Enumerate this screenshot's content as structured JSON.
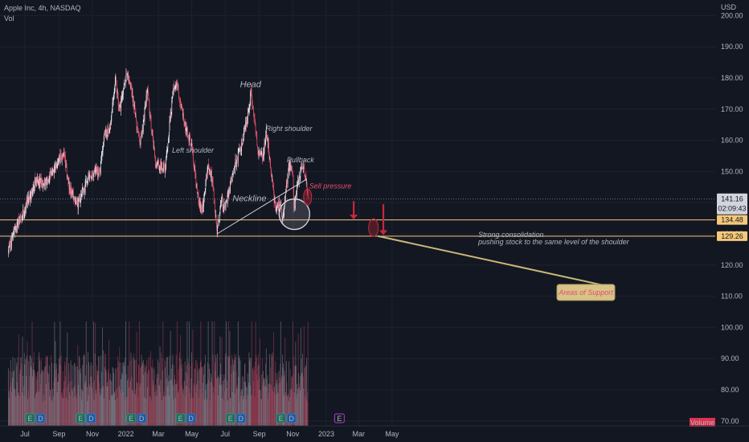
{
  "header": {
    "title": "Apple Inc, 4h, NASDAQ",
    "volume_label": "Vol"
  },
  "colors": {
    "background": "#131722",
    "up": "#e9e9ef",
    "down": "#e04f6a",
    "grid": "#1e2230",
    "support": "#f5c87a",
    "neckline": "#cfd2da",
    "annotation_red": "#e84c6e"
  },
  "chart_data": {
    "type": "candlestick",
    "title": "Apple Inc, 4h, NASDAQ",
    "currency": "USD",
    "x_tick_labels": [
      "Jul",
      "Sep",
      "Nov",
      "2022",
      "Mar",
      "May",
      "Jul",
      "Sep",
      "Nov",
      "2023",
      "Mar",
      "May"
    ],
    "y_tick_labels": [
      200,
      190,
      180,
      170,
      160,
      150,
      140,
      130,
      120,
      110,
      100,
      90,
      80,
      70
    ],
    "y_tick_text": [
      "200.00",
      "190.00",
      "180.00",
      "170.00",
      "160.00",
      "150.00",
      "140.00",
      "130.00",
      "120.00",
      "110.00",
      "100.00",
      "90.00",
      "80.00",
      "70.00"
    ],
    "ylim": [
      67,
      205
    ],
    "price_anchors": [
      [
        "2021-06-01",
        124.5
      ],
      [
        "2021-06-10",
        130
      ],
      [
        "2021-07-01",
        138
      ],
      [
        "2021-07-20",
        147
      ],
      [
        "2021-08-05",
        146
      ],
      [
        "2021-08-30",
        153
      ],
      [
        "2021-09-10",
        156
      ],
      [
        "2021-09-20",
        145
      ],
      [
        "2021-10-05",
        139
      ],
      [
        "2021-10-25",
        149
      ],
      [
        "2021-11-15",
        150
      ],
      [
        "2021-11-22",
        161
      ],
      [
        "2021-12-03",
        164
      ],
      [
        "2021-12-13",
        180
      ],
      [
        "2021-12-20",
        169
      ],
      [
        "2022-01-03",
        182
      ],
      [
        "2022-01-14",
        173
      ],
      [
        "2022-01-27",
        158
      ],
      [
        "2022-02-09",
        176
      ],
      [
        "2022-02-24",
        152
      ],
      [
        "2022-03-14",
        151
      ],
      [
        "2022-03-29",
        178
      ],
      [
        "2022-04-04",
        178
      ],
      [
        "2022-04-18",
        165
      ],
      [
        "2022-05-01",
        158
      ],
      [
        "2022-05-12",
        142
      ],
      [
        "2022-05-20",
        137
      ],
      [
        "2022-05-30",
        151
      ],
      [
        "2022-06-07",
        148
      ],
      [
        "2022-06-16",
        130
      ],
      [
        "2022-06-24",
        141
      ],
      [
        "2022-07-01",
        138
      ],
      [
        "2022-07-15",
        150
      ],
      [
        "2022-07-28",
        157
      ],
      [
        "2022-08-10",
        167
      ],
      [
        "2022-08-17",
        175
      ],
      [
        "2022-08-30",
        157
      ],
      [
        "2022-09-07",
        154
      ],
      [
        "2022-09-13",
        163
      ],
      [
        "2022-09-20",
        155
      ],
      [
        "2022-09-30",
        138
      ],
      [
        "2022-10-10",
        140
      ],
      [
        "2022-10-13",
        134
      ],
      [
        "2022-10-25",
        152
      ],
      [
        "2022-11-01",
        150
      ],
      [
        "2022-11-03",
        138
      ],
      [
        "2022-11-10",
        146
      ],
      [
        "2022-11-17",
        152
      ],
      [
        "2022-11-22",
        150
      ],
      [
        "2022-11-25",
        148
      ],
      [
        "2022-11-29",
        141.16
      ]
    ],
    "last_price": 141.16,
    "last_price_label": "141.16",
    "countdown": "02:09:43",
    "support_levels": [
      134.48,
      129.26
    ],
    "support_level_labels": [
      "134.48",
      "129.26"
    ],
    "volume_y_max": 100,
    "annotations": [
      {
        "text": "Head",
        "x": "2022-08-16",
        "y": 177
      },
      {
        "text": "Left shoulder",
        "x": "2022-05-03",
        "y": 156
      },
      {
        "text": "Right shoulder",
        "x": "2022-10-25",
        "y": 163
      },
      {
        "text": "Pullback",
        "x": "2022-11-15",
        "y": 153
      },
      {
        "text": "Sell pressure",
        "x": "2022-12-01",
        "y": 144.5
      },
      {
        "text": "Neckline",
        "x": "2022-08-14",
        "y": 140.5
      },
      {
        "text": "Strong consolidation",
        "x": "2022-09-19",
        "y": 129
      },
      {
        "text": "pushing stock to the same level of the shoulder",
        "x": "2022-09-19",
        "y": 126.7
      },
      {
        "text": "Areas of Support",
        "x": "2023-02-10",
        "y": 111
      }
    ],
    "neckline": [
      [
        "2022-06-16",
        130
      ],
      [
        "2022-11-26",
        147.5
      ]
    ],
    "earnings_markers": [
      "2021-07-20",
      "2021-10-20",
      "2022-01-20",
      "2022-04-20",
      "2022-07-20",
      "2022-10-20"
    ],
    "future_event_marker": {
      "x": "2023-01-25",
      "label": "E"
    },
    "volume_badge": "Volume"
  }
}
